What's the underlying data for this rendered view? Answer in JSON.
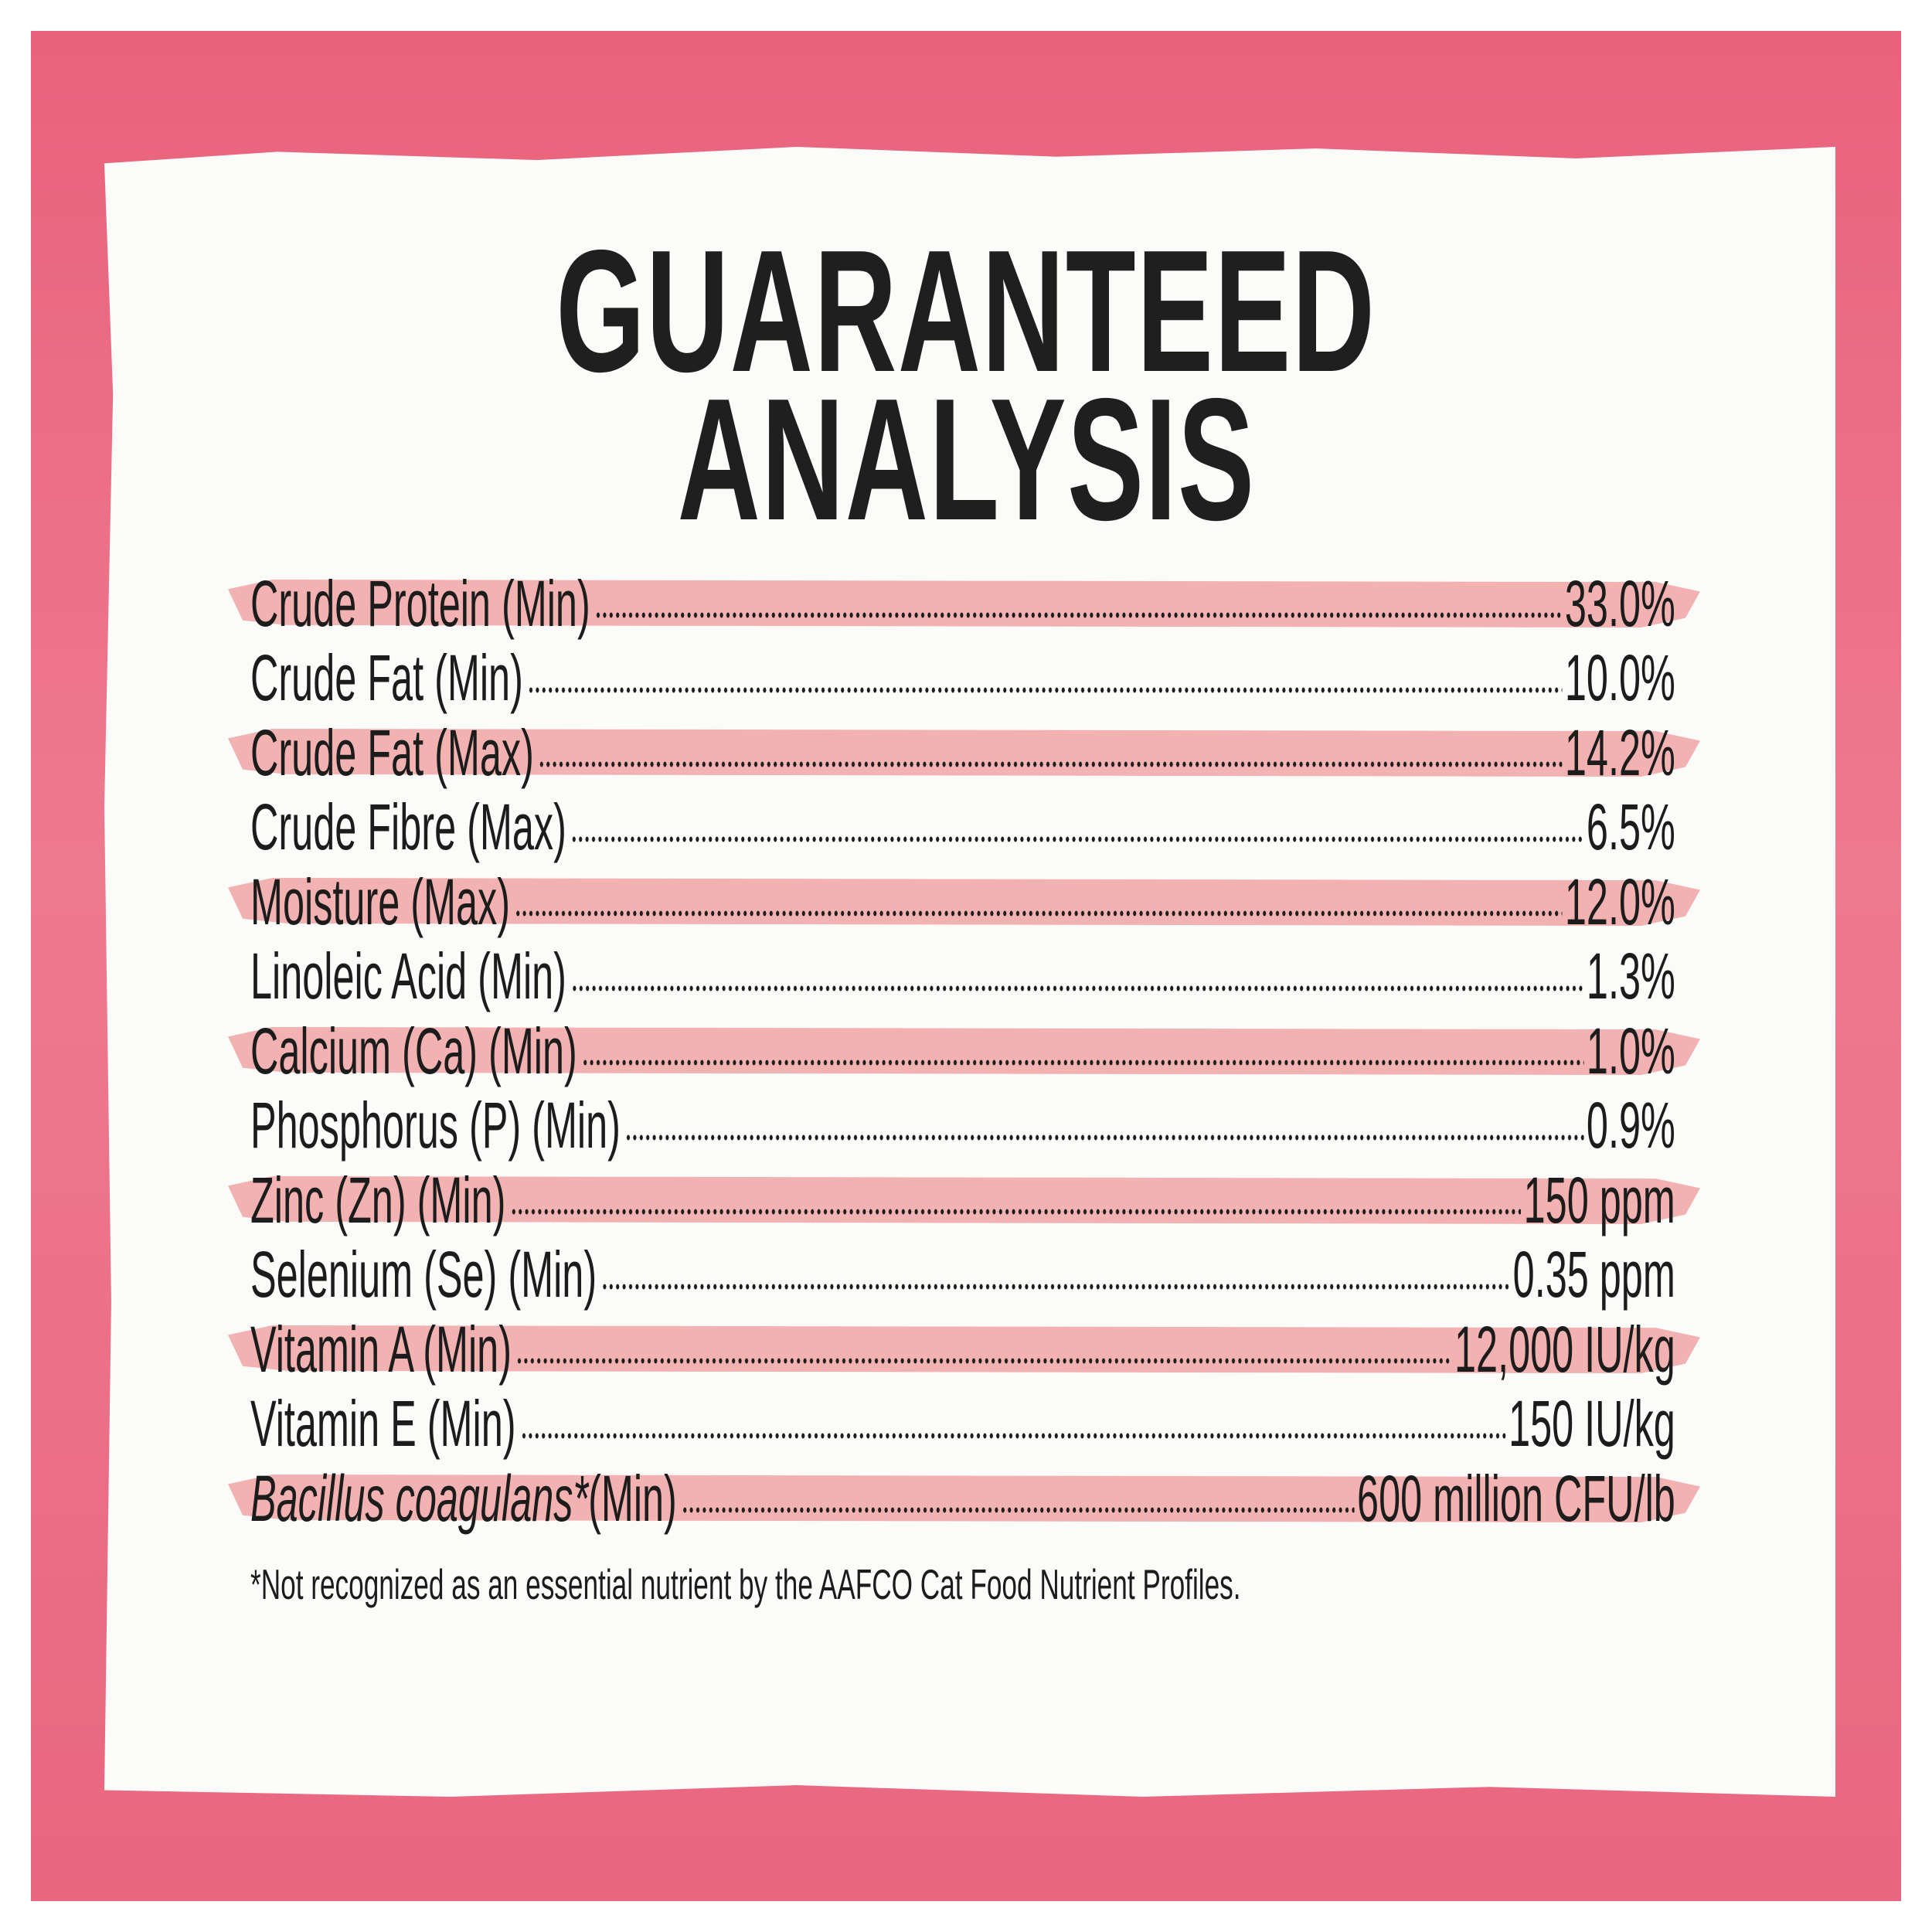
{
  "title": {
    "line1": "GUARANTEED",
    "line2": "ANALYSIS"
  },
  "colors": {
    "frame": "#e9627c",
    "highlight": "#f0aaa8",
    "paper": "#fbfbfa",
    "text": "#1c1c1c"
  },
  "rows": [
    {
      "label": "Crude Protein (Min)",
      "value": "33.0%",
      "highlighted": true
    },
    {
      "label": "Crude Fat (Min)",
      "value": "10.0%",
      "highlighted": false
    },
    {
      "label": "Crude Fat (Max)",
      "value": "14.2%",
      "highlighted": true
    },
    {
      "label": "Crude Fibre (Max)",
      "value": "6.5%",
      "highlighted": false
    },
    {
      "label": "Moisture (Max)",
      "value": "12.0%",
      "highlighted": true
    },
    {
      "label": "Linoleic Acid (Min)",
      "value": "1.3%",
      "highlighted": false
    },
    {
      "label": "Calcium (Ca) (Min)",
      "value": "1.0%",
      "highlighted": true
    },
    {
      "label": "Phosphorus (P) (Min)",
      "value": "0.9%",
      "highlighted": false
    },
    {
      "label": "Zinc (Zn) (Min)",
      "value": "150 ppm",
      "highlighted": true
    },
    {
      "label": "Selenium (Se) (Min)",
      "value": "0.35 ppm",
      "highlighted": false
    },
    {
      "label": "Vitamin A (Min)",
      "value": "12,000 IU/kg",
      "highlighted": true
    },
    {
      "label": "Vitamin E (Min)",
      "value": "150 IU/kg",
      "highlighted": false
    },
    {
      "label_italic": "Bacillus coagulans*",
      "label": "(Min)",
      "value": "600 million CFU/lb",
      "highlighted": true
    }
  ],
  "footnote": "*Not recognized as an essential nutrient by the AAFCO Cat Food Nutrient Profiles."
}
